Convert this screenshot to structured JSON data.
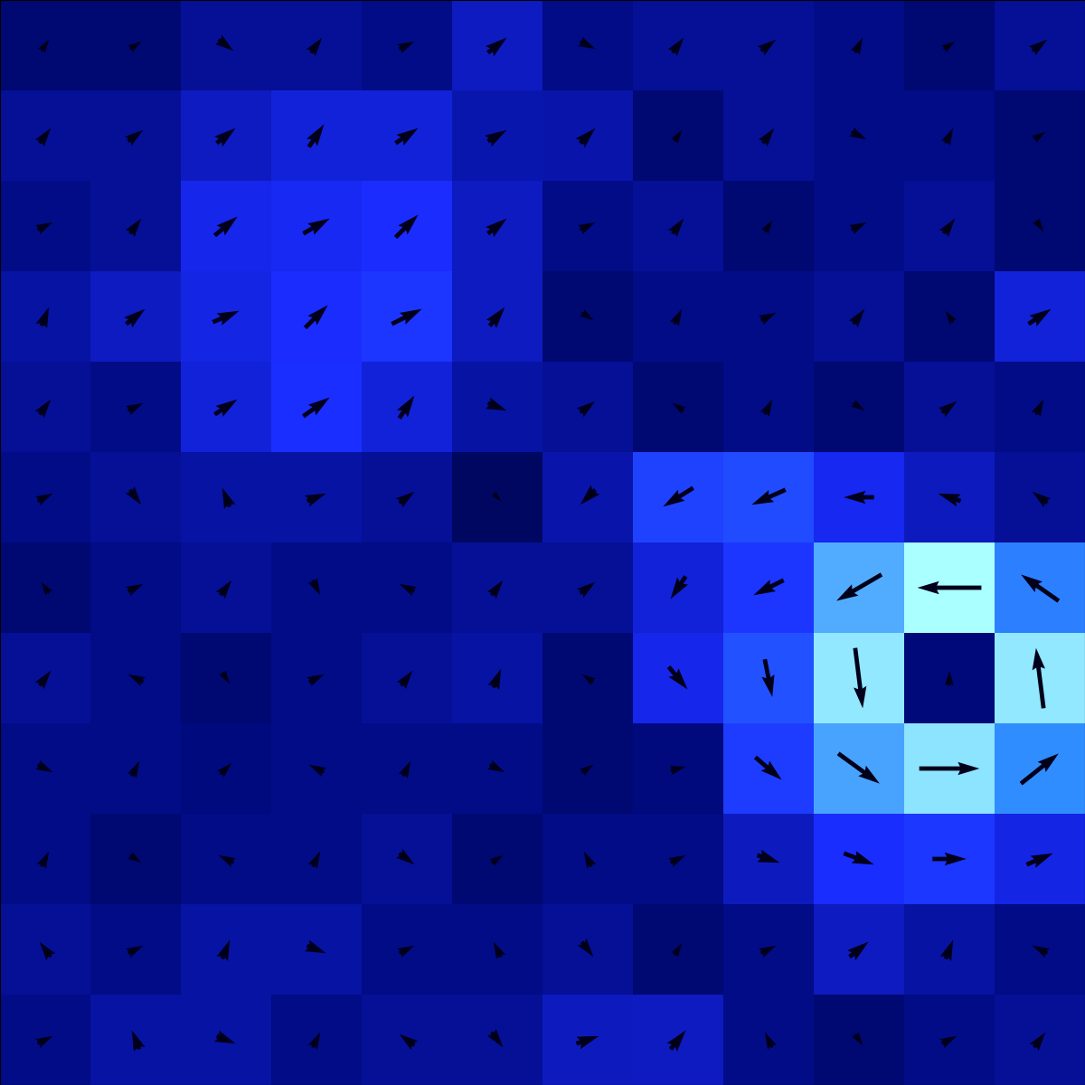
{
  "chart_data": {
    "type": "quiver",
    "x": [
      0,
      1,
      2,
      3,
      4,
      5,
      6,
      7,
      8,
      9,
      10,
      11
    ],
    "y": [
      0,
      1,
      2,
      3,
      4,
      5,
      6,
      7,
      8,
      9,
      10,
      11
    ],
    "u": [
      [
        0.2,
        -0.1,
        0.25,
        0.1,
        -0.2,
        0.15,
        0.3,
        0.2,
        -0.1,
        0.1,
        0.2,
        0.15
      ],
      [
        -0.15,
        0.2,
        0.1,
        0.25,
        0.2,
        -0.1,
        0.15,
        0.1,
        0.2,
        0.25,
        0.1,
        -0.2
      ],
      [
        0.1,
        0.15,
        -0.2,
        0.1,
        0.2,
        0.15,
        -0.1,
        0.2,
        0.3,
        0.4,
        0.45,
        0.35
      ],
      [
        0.2,
        0.1,
        0.15,
        -0.2,
        0.1,
        0.2,
        0.15,
        0.2,
        0.35,
        0.55,
        0.8,
        0.5
      ],
      [
        0.15,
        -0.2,
        0.1,
        0.2,
        0.15,
        0.1,
        -0.15,
        0.25,
        0.1,
        0.1,
        0.0,
        -0.1
      ],
      [
        -0.1,
        0.2,
        0.15,
        0.1,
        -0.2,
        0.15,
        0.2,
        -0.2,
        -0.4,
        -0.6,
        -0.85,
        -0.5
      ],
      [
        0.2,
        0.15,
        -0.1,
        0.25,
        0.2,
        0.1,
        -0.2,
        -0.4,
        -0.45,
        -0.4,
        -0.3,
        -0.2
      ],
      [
        0.15,
        0.2,
        0.3,
        0.35,
        0.2,
        0.25,
        0.2,
        -0.15,
        0.1,
        0.15,
        0.2,
        0.1
      ],
      [
        0.1,
        0.25,
        0.35,
        0.3,
        0.4,
        0.2,
        0.15,
        0.1,
        0.2,
        0.15,
        -0.1,
        0.3
      ],
      [
        0.2,
        0.15,
        0.3,
        0.35,
        0.3,
        0.25,
        0.2,
        0.15,
        0.1,
        0.2,
        0.15,
        0.1
      ],
      [
        0.15,
        0.2,
        0.25,
        0.2,
        0.3,
        0.25,
        0.2,
        0.1,
        0.15,
        0.2,
        0.1,
        0.15
      ],
      [
        0.1,
        0.15,
        0.2,
        0.15,
        0.2,
        0.25,
        0.2,
        0.15,
        0.2,
        0.1,
        0.15,
        0.2
      ]
    ],
    "v": [
      [
        0.1,
        0.25,
        -0.1,
        0.2,
        0.15,
        -0.2,
        0.1,
        0.25,
        0.2,
        -0.15,
        0.1,
        0.2
      ],
      [
        0.2,
        0.1,
        0.25,
        -0.1,
        0.1,
        0.2,
        -0.2,
        0.15,
        0.1,
        0.2,
        0.25,
        0.1
      ],
      [
        0.2,
        -0.1,
        0.1,
        0.2,
        -0.15,
        0.1,
        0.2,
        0.1,
        -0.1,
        -0.15,
        0.0,
        0.15
      ],
      [
        -0.1,
        0.2,
        0.15,
        0.1,
        0.2,
        -0.1,
        0.1,
        0.05,
        -0.3,
        -0.4,
        0.0,
        0.4
      ],
      [
        0.2,
        0.1,
        -0.15,
        0.1,
        0.2,
        0.25,
        0.1,
        -0.3,
        -0.5,
        -0.8,
        0.2,
        0.8
      ],
      [
        0.15,
        0.1,
        0.2,
        -0.2,
        0.1,
        0.2,
        0.15,
        -0.3,
        -0.2,
        -0.35,
        0.0,
        0.35
      ],
      [
        0.1,
        -0.2,
        0.25,
        0.1,
        0.15,
        -0.1,
        -0.2,
        -0.25,
        -0.2,
        0.0,
        0.1,
        0.15
      ],
      [
        0.2,
        0.1,
        0.2,
        0.25,
        0.3,
        -0.1,
        0.15,
        0.1,
        0.2,
        -0.1,
        0.15,
        0.2
      ],
      [
        0.25,
        0.2,
        0.15,
        0.3,
        0.2,
        0.25,
        -0.1,
        0.2,
        0.1,
        0.2,
        0.15,
        0.2
      ],
      [
        0.1,
        0.2,
        0.25,
        0.2,
        0.3,
        0.2,
        0.1,
        0.2,
        0.15,
        0.1,
        0.2,
        -0.15
      ],
      [
        0.2,
        0.15,
        0.2,
        0.3,
        0.2,
        0.15,
        0.2,
        0.15,
        0.2,
        -0.1,
        0.2,
        0.1
      ],
      [
        0.15,
        0.1,
        -0.15,
        0.2,
        0.1,
        0.2,
        -0.1,
        0.2,
        0.15,
        0.2,
        0.1,
        0.15
      ]
    ],
    "xlim": [
      -0.5,
      11.5
    ],
    "ylim": [
      -0.5,
      11.5
    ],
    "tick_labels": false
  }
}
